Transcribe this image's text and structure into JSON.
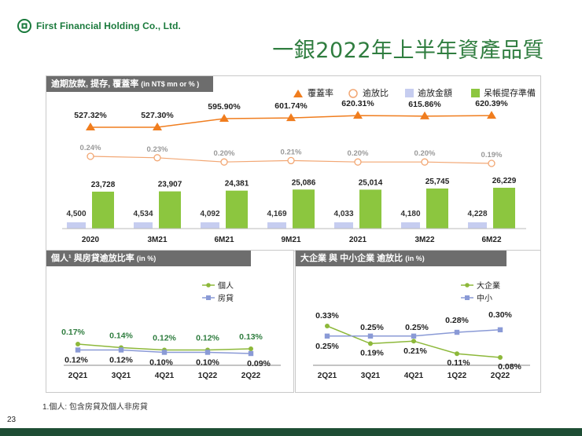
{
  "header": {
    "company_name": "First Financial Holding Co., Ltd.",
    "page_title": "一銀2022年上半年資產品質",
    "page_number": "23"
  },
  "footnote": "1.個人: 包含房貸及個人非房貸",
  "colors": {
    "brand_green": "#1a7a3c",
    "title_green": "#2f7d3f",
    "panel_header": "#6d6d6d",
    "coverage": "#f07d1e",
    "npl_ratio": "#f2a774",
    "npl_amount": "#c6cdf0",
    "provision": "#8cc63f",
    "line_green": "#8db83a",
    "line_blue": "#8a9ad6",
    "footer": "#1e4d34"
  },
  "chart_data": [
    {
      "type": "bar",
      "title": "逾期放款, 提存, 覆蓋率",
      "unit_label": "(in NT$ mn or % )",
      "categories": [
        "2020",
        "3M21",
        "6M21",
        "9M21",
        "2021",
        "3M22",
        "6M22"
      ],
      "legend": [
        "覆蓋率",
        "逾放比",
        "逾放金額",
        "呆帳提存準備"
      ],
      "series": [
        {
          "name": "覆蓋率",
          "type": "line",
          "values": [
            527.32,
            527.3,
            595.9,
            601.74,
            620.31,
            615.86,
            620.39
          ],
          "labels": [
            "527.32%",
            "527.30%",
            "595.90%",
            "601.74%",
            "620.31%",
            "615.86%",
            "620.39%"
          ]
        },
        {
          "name": "逾放比",
          "type": "line",
          "values": [
            0.24,
            0.23,
            0.2,
            0.21,
            0.2,
            0.2,
            0.19
          ],
          "labels": [
            "0.24%",
            "0.23%",
            "0.20%",
            "0.21%",
            "0.20%",
            "0.20%",
            "0.19%"
          ]
        },
        {
          "name": "逾放金額",
          "type": "bar",
          "values": [
            4500,
            4534,
            4092,
            4169,
            4033,
            4180,
            4228
          ],
          "labels": [
            "4,500",
            "4,534",
            "4,092",
            "4,169",
            "4,033",
            "4,180",
            "4,228"
          ]
        },
        {
          "name": "呆帳提存準備",
          "type": "bar",
          "values": [
            23728,
            23907,
            24381,
            25086,
            25014,
            25745,
            26229
          ],
          "labels": [
            "23,728",
            "23,907",
            "24,381",
            "25,086",
            "25,014",
            "25,745",
            "26,229"
          ]
        }
      ]
    },
    {
      "type": "line",
      "title": "個人¹ 與房貸逾放比率",
      "unit_label": "(in %)",
      "categories": [
        "2Q21",
        "3Q21",
        "4Q21",
        "1Q22",
        "2Q22"
      ],
      "legend": [
        "個人",
        "房貸"
      ],
      "series": [
        {
          "name": "個人",
          "values": [
            0.17,
            0.14,
            0.12,
            0.12,
            0.13
          ],
          "labels": [
            "0.17%",
            "0.14%",
            "0.12%",
            "0.12%",
            "0.13%"
          ]
        },
        {
          "name": "房貸",
          "values": [
            0.12,
            0.12,
            0.1,
            0.1,
            0.09
          ],
          "labels": [
            "0.12%",
            "0.12%",
            "0.10%",
            "0.10%",
            "0.09%"
          ]
        }
      ]
    },
    {
      "type": "line",
      "title": "大企業 與 中小企業 逾放比",
      "unit_label": "(in %)",
      "categories": [
        "2Q21",
        "3Q21",
        "4Q21",
        "1Q22",
        "2Q22"
      ],
      "legend": [
        "大企業",
        "中小"
      ],
      "series": [
        {
          "name": "大企業",
          "values": [
            0.33,
            0.19,
            0.21,
            0.11,
            0.08
          ],
          "labels": [
            "0.33%",
            "0.19%",
            "0.21%",
            "0.11%",
            "0.08%"
          ]
        },
        {
          "name": "中小",
          "values": [
            0.25,
            0.25,
            0.25,
            0.28,
            0.3
          ],
          "labels": [
            "0.25%",
            "0.25%",
            "0.25%",
            "0.28%",
            "0.30%"
          ]
        }
      ]
    }
  ]
}
